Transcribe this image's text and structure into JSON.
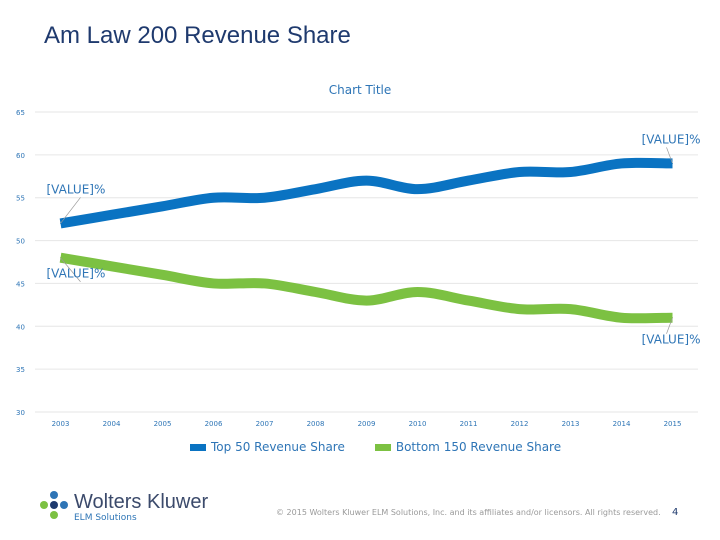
{
  "slide": {
    "title": "Am Law 200 Revenue Share",
    "copyright": "© 2015 Wolters Kluwer ELM Solutions, Inc. and its affiliates and/or licensors. All rights reserved.",
    "page_number": "4"
  },
  "logo": {
    "name": "Wolters Kluwer",
    "subtitle": "ELM Solutions"
  },
  "chart_data": {
    "type": "line",
    "title": "Chart Title",
    "xlabel": "",
    "ylabel": "",
    "categories": [
      "2003",
      "2004",
      "2005",
      "2006",
      "2007",
      "2008",
      "2009",
      "2010",
      "2011",
      "2012",
      "2013",
      "2014",
      "2015"
    ],
    "ylim": [
      30,
      65
    ],
    "yticks": [
      30,
      35,
      40,
      45,
      50,
      55,
      60,
      65
    ],
    "grid": true,
    "legend": "bottom",
    "series": [
      {
        "name": "Top 50 Revenue Share",
        "color": "#0a73c2",
        "values": [
          52,
          53,
          54,
          55,
          55,
          56,
          57,
          56,
          57,
          58,
          58,
          59,
          59
        ],
        "labels": [
          {
            "index": 0,
            "text": "[VALUE]%"
          },
          {
            "index": 12,
            "text": "[VALUE]%"
          }
        ]
      },
      {
        "name": "Bottom 150 Revenue Share",
        "color": "#7cc142",
        "values": [
          48,
          47,
          46,
          45,
          45,
          44,
          43,
          44,
          43,
          42,
          42,
          41,
          41
        ],
        "labels": [
          {
            "index": 0,
            "text": "[VALUE]%"
          },
          {
            "index": 12,
            "text": "[VALUE]%"
          }
        ]
      }
    ]
  },
  "colors": {
    "title": "#1f3a6e",
    "accent": "#2e75b6",
    "grid": "#e6e6e6"
  }
}
